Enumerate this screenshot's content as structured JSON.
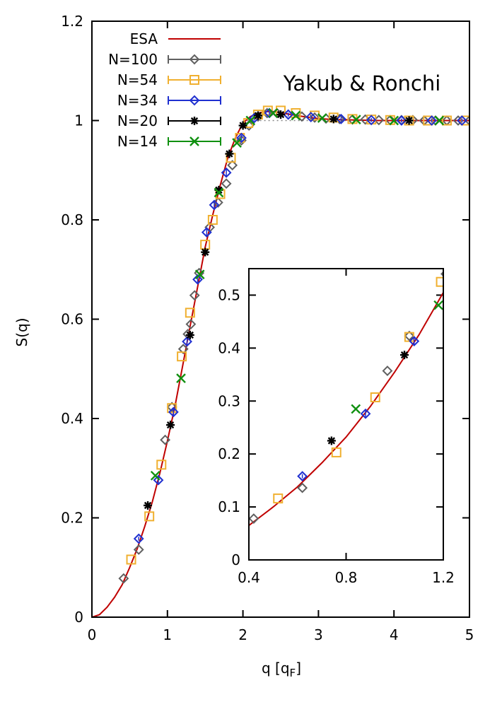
{
  "chart_data": [
    {
      "name": "main",
      "type": "scatter",
      "xlabel": "q [q",
      "xlabel_sub": "F",
      "xlabel_close": "]",
      "ylabel": "S(q)",
      "xlim": [
        0,
        5
      ],
      "ylim": [
        0,
        1.2
      ],
      "xticks": [
        0,
        1,
        2,
        3,
        4,
        5
      ],
      "xtick_labels": [
        "0",
        "1",
        "2",
        "3",
        "4",
        "5"
      ],
      "yticks": [
        0,
        0.2,
        0.4,
        0.6,
        0.8,
        1,
        1.2
      ],
      "ytick_labels": [
        "0",
        "0.2",
        "0.4",
        "0.6",
        "0.8",
        "1",
        "1.2"
      ],
      "annotation": "Yakub & Ronchi",
      "legend_position": "top-left",
      "line": {
        "name": "ESA",
        "color": "#c00000",
        "x": [
          0,
          0.1,
          0.2,
          0.3,
          0.4,
          0.5,
          0.6,
          0.7,
          0.8,
          0.9,
          1.0,
          1.1,
          1.2,
          1.3,
          1.4,
          1.5,
          1.6,
          1.7,
          1.8,
          1.9,
          2.0,
          2.1,
          2.2,
          2.3,
          2.4,
          2.5,
          2.6,
          2.8,
          3.0,
          3.2,
          3.5,
          3.8,
          4.0,
          4.5,
          5.0
        ],
        "y": [
          0,
          0.005,
          0.02,
          0.04,
          0.065,
          0.1,
          0.138,
          0.183,
          0.232,
          0.29,
          0.355,
          0.425,
          0.505,
          0.585,
          0.665,
          0.745,
          0.81,
          0.87,
          0.925,
          0.965,
          0.995,
          1.008,
          1.015,
          1.018,
          1.018,
          1.016,
          1.013,
          1.008,
          1.004,
          1.002,
          1.001,
          1.0,
          1.0,
          1.0,
          1.0
        ]
      },
      "series": [
        {
          "name": "N=100",
          "marker": "diamond",
          "color": "#606060",
          "x": [
            0.42,
            0.62,
            0.97,
            1.06,
            1.21,
            1.27,
            1.31,
            1.36,
            1.42,
            1.56,
            1.67,
            1.78,
            1.86,
            1.98,
            2.08,
            2.2,
            2.32,
            2.45,
            2.6,
            2.78,
            2.95,
            3.1,
            3.28,
            3.45,
            3.62,
            3.8,
            3.95,
            4.1,
            4.25,
            4.4,
            4.55,
            4.7,
            4.85,
            5.0
          ],
          "y": [
            0.078,
            0.136,
            0.357,
            0.423,
            0.54,
            0.57,
            0.59,
            0.648,
            0.693,
            0.785,
            0.835,
            0.873,
            0.91,
            0.96,
            0.99,
            1.008,
            1.015,
            1.015,
            1.012,
            1.008,
            1.006,
            1.004,
            1.003,
            1.002,
            1.002,
            1.001,
            1.001,
            1.001,
            1.001,
            1.0,
            1.0,
            1.0,
            1.0,
            1.0
          ]
        },
        {
          "name": "N=54",
          "marker": "square",
          "color": "#f0b030",
          "x": [
            0.52,
            0.76,
            0.92,
            1.06,
            1.19,
            1.3,
            1.5,
            1.6,
            1.7,
            1.84,
            1.96,
            2.07,
            2.2,
            2.33,
            2.5,
            2.7,
            2.95,
            3.2,
            3.45,
            3.7,
            3.95,
            4.2,
            4.45,
            4.7,
            4.95
          ],
          "y": [
            0.116,
            0.203,
            0.307,
            0.421,
            0.525,
            0.613,
            0.75,
            0.8,
            0.852,
            0.925,
            0.965,
            0.995,
            1.012,
            1.02,
            1.02,
            1.015,
            1.01,
            1.006,
            1.003,
            1.002,
            1.001,
            1.0,
            1.0,
            1.0,
            1.0
          ]
        },
        {
          "name": "N=34",
          "marker": "diamond",
          "color": "#2030d0",
          "x": [
            0.62,
            0.88,
            1.08,
            1.26,
            1.4,
            1.52,
            1.62,
            1.78,
            1.98,
            2.15,
            2.35,
            2.6,
            2.9,
            3.3,
            3.7,
            4.1,
            4.5,
            4.9
          ],
          "y": [
            0.158,
            0.276,
            0.413,
            0.555,
            0.68,
            0.775,
            0.83,
            0.895,
            0.965,
            1.005,
            1.015,
            1.012,
            1.007,
            1.003,
            1.001,
            1.0,
            1.0,
            1.0
          ],
          "dy": [
            0.004,
            0.006,
            0.008,
            0.009,
            0.009,
            0.009,
            0.009,
            0.008,
            0.006,
            0.005,
            0.004,
            0.004,
            0.004,
            0.004,
            0.004,
            0.004,
            0.004,
            0.004
          ]
        },
        {
          "name": "N=20",
          "marker": "star",
          "color": "#000000",
          "x": [
            0.74,
            1.04,
            1.3,
            1.5,
            1.68,
            1.82,
            2.0,
            2.2,
            2.5,
            3.2,
            4.2
          ],
          "y": [
            0.225,
            0.387,
            0.568,
            0.735,
            0.86,
            0.933,
            0.99,
            1.01,
            1.012,
            1.003,
            1.0
          ]
        },
        {
          "name": "N=14",
          "marker": "cross",
          "color": "#109010",
          "x": [
            0.84,
            1.18,
            1.43,
            1.68,
            1.92,
            2.1,
            2.4,
            2.7,
            3.05,
            3.5,
            4.0,
            4.6
          ],
          "y": [
            0.285,
            0.481,
            0.69,
            0.855,
            0.955,
            1.0,
            1.015,
            1.01,
            1.005,
            1.002,
            1.0,
            1.0
          ]
        }
      ]
    },
    {
      "name": "inset",
      "type": "scatter",
      "xlim": [
        0.4,
        1.2
      ],
      "ylim": [
        0,
        0.55
      ],
      "xticks": [
        0.4,
        0.8,
        1.2
      ],
      "xtick_labels": [
        "0.4",
        "0.8",
        "1.2"
      ],
      "yticks": [
        0,
        0.1,
        0.2,
        0.3,
        0.4,
        0.5
      ],
      "ytick_labels": [
        "0",
        "0.1",
        "0.2",
        "0.3",
        "0.4",
        "0.5"
      ]
    }
  ]
}
